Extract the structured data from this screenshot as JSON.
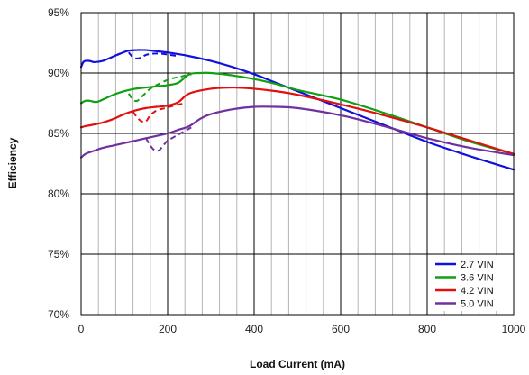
{
  "chart_data": {
    "type": "line",
    "title": "",
    "xlabel": "Load Current (mA)",
    "ylabel": "Efficiency",
    "xlim": [
      0,
      1000
    ],
    "ylim": [
      70,
      95
    ],
    "xticks": [
      0,
      200,
      400,
      600,
      800,
      1000
    ],
    "xtick_labels": [
      "0",
      "200",
      "400",
      "600",
      "800",
      "1000"
    ],
    "yticks": [
      70,
      75,
      80,
      85,
      90,
      95
    ],
    "ytick_labels": [
      "70%",
      "75%",
      "80%",
      "85%",
      "90%",
      "95%"
    ],
    "minor_x_gridlines_every": 40,
    "grid": true,
    "legend": "bottom-right",
    "series": [
      {
        "name": "2.7 VIN",
        "color": "#1010e0",
        "x": [
          0,
          5,
          10,
          20,
          30,
          50,
          70,
          90,
          110,
          130,
          150,
          175,
          200,
          250,
          300,
          350,
          400,
          450,
          500,
          600,
          700,
          800,
          900,
          1000
        ],
        "y": [
          90.5,
          90.9,
          91.0,
          91.0,
          90.9,
          91.0,
          91.3,
          91.6,
          91.85,
          91.9,
          91.9,
          91.8,
          91.7,
          91.4,
          91.0,
          90.5,
          89.9,
          89.2,
          88.5,
          87.1,
          85.7,
          84.3,
          83.1,
          82.0
        ]
      },
      {
        "name": "3.6 VIN",
        "color": "#10a010",
        "x": [
          0,
          10,
          20,
          35,
          50,
          75,
          100,
          125,
          150,
          175,
          200,
          225,
          250,
          275,
          300,
          350,
          400,
          450,
          500,
          600,
          700,
          800,
          900,
          1000
        ],
        "y": [
          87.5,
          87.7,
          87.7,
          87.6,
          87.8,
          88.2,
          88.5,
          88.7,
          88.8,
          88.9,
          89.0,
          89.2,
          89.9,
          90.0,
          90.0,
          89.8,
          89.5,
          89.1,
          88.6,
          87.8,
          86.7,
          85.5,
          84.3,
          83.3
        ]
      },
      {
        "name": "4.2 VIN",
        "color": "#e01010",
        "x": [
          0,
          10,
          25,
          50,
          75,
          100,
          125,
          150,
          175,
          200,
          225,
          250,
          300,
          350,
          400,
          450,
          500,
          600,
          700,
          800,
          900,
          1000
        ],
        "y": [
          85.5,
          85.6,
          85.7,
          85.9,
          86.2,
          86.6,
          86.9,
          87.1,
          87.2,
          87.3,
          87.6,
          88.3,
          88.7,
          88.8,
          88.7,
          88.5,
          88.2,
          87.4,
          86.5,
          85.5,
          84.4,
          83.3
        ]
      },
      {
        "name": "5.0 VIN",
        "color": "#7030a0",
        "x": [
          0,
          10,
          25,
          50,
          75,
          100,
          125,
          150,
          175,
          200,
          225,
          250,
          275,
          300,
          350,
          400,
          450,
          500,
          600,
          700,
          800,
          900,
          1000
        ],
        "y": [
          83.0,
          83.3,
          83.5,
          83.8,
          84.0,
          84.2,
          84.4,
          84.6,
          84.8,
          85.0,
          85.3,
          85.6,
          86.2,
          86.6,
          87.0,
          87.2,
          87.2,
          87.1,
          86.5,
          85.6,
          84.6,
          83.8,
          83.2
        ]
      }
    ],
    "dashed_transitions": [
      {
        "series": "2.7 VIN",
        "color": "#1010e0",
        "x": [
          110,
          120,
          130,
          140,
          150,
          165,
          185,
          205,
          225
        ],
        "y": [
          91.7,
          91.3,
          91.2,
          91.3,
          91.5,
          91.6,
          91.6,
          91.5,
          91.4
        ]
      },
      {
        "series": "3.6 VIN",
        "color": "#10a010",
        "x": [
          110,
          120,
          130,
          145,
          160,
          180,
          205,
          230,
          255
        ],
        "y": [
          88.3,
          87.8,
          87.7,
          88.2,
          88.7,
          89.1,
          89.5,
          89.7,
          89.9
        ]
      },
      {
        "series": "4.2 VIN",
        "color": "#e01010",
        "x": [
          120,
          130,
          140,
          150,
          160,
          175,
          195,
          215,
          240
        ],
        "y": [
          86.8,
          86.3,
          86.0,
          86.0,
          86.5,
          86.9,
          87.1,
          87.3,
          87.5
        ]
      },
      {
        "series": "5.0 VIN",
        "color": "#7030a0",
        "x": [
          150,
          160,
          170,
          180,
          190,
          200,
          220,
          240,
          260
        ],
        "y": [
          84.6,
          84.0,
          83.6,
          83.6,
          84.0,
          84.4,
          84.8,
          85.2,
          85.6
        ]
      }
    ]
  }
}
